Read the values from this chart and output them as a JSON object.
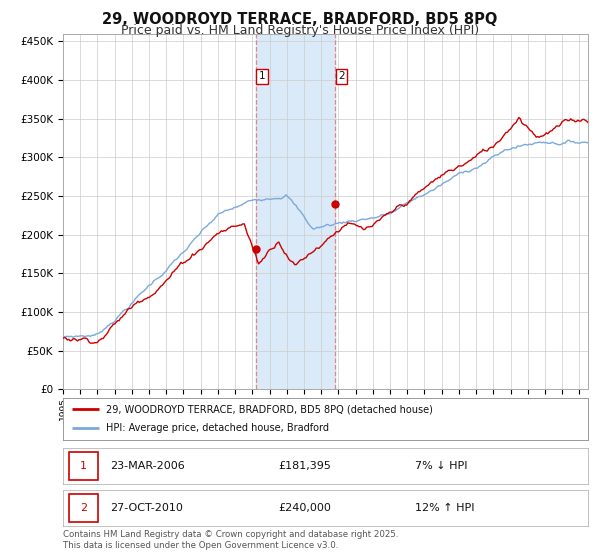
{
  "title": "29, WOODROYD TERRACE, BRADFORD, BD5 8PQ",
  "subtitle": "Price paid vs. HM Land Registry's House Price Index (HPI)",
  "title_fontsize": 10.5,
  "subtitle_fontsize": 9,
  "background_color": "#ffffff",
  "plot_bg_color": "#ffffff",
  "grid_color": "#cccccc",
  "ylim": [
    0,
    460000
  ],
  "xlim_start": 1995.0,
  "xlim_end": 2025.5,
  "yticks": [
    0,
    50000,
    100000,
    150000,
    200000,
    250000,
    300000,
    350000,
    400000,
    450000
  ],
  "ytick_labels": [
    "£0",
    "£50K",
    "£100K",
    "£150K",
    "£200K",
    "£250K",
    "£300K",
    "£350K",
    "£400K",
    "£450K"
  ],
  "hpi_color": "#7aaadd",
  "price_color": "#cc0000",
  "marker1_x": 2006.22,
  "marker1_y": 181395,
  "marker2_x": 2010.83,
  "marker2_y": 240000,
  "shade_color": "#daeaf8",
  "vline_color": "#dd8888",
  "legend_label_price": "29, WOODROYD TERRACE, BRADFORD, BD5 8PQ (detached house)",
  "legend_label_hpi": "HPI: Average price, detached house, Bradford",
  "table_row1_num": "1",
  "table_row1_date": "23-MAR-2006",
  "table_row1_price": "£181,395",
  "table_row1_hpi": "7% ↓ HPI",
  "table_row2_num": "2",
  "table_row2_date": "27-OCT-2010",
  "table_row2_price": "£240,000",
  "table_row2_hpi": "12% ↑ HPI",
  "footnote": "Contains HM Land Registry data © Crown copyright and database right 2025.\nThis data is licensed under the Open Government Licence v3.0."
}
